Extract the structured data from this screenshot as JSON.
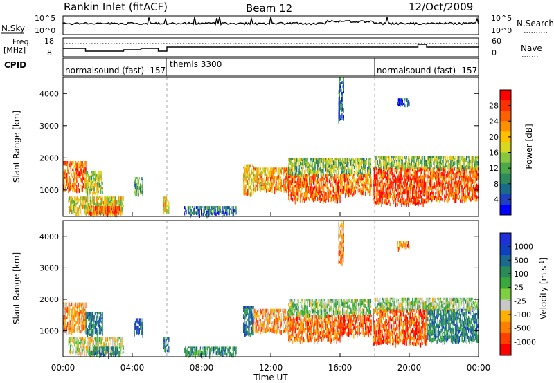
{
  "header": {
    "station": "Rankin Inlet (fitACF)",
    "beam": "Beam 12",
    "date": "12/Oct/2009"
  },
  "summary_panels": {
    "nsky": {
      "label": "N.Sky",
      "ticks": [
        "10^5",
        "10^0"
      ]
    },
    "nsearch": {
      "label": "N.Search",
      "ticks": [
        "10^5",
        "10^0"
      ]
    },
    "freq": {
      "label_line1": "Freq.",
      "label_line2": "[MHz]",
      "ticks": [
        "18",
        "8"
      ]
    },
    "nave": {
      "label": "Nave",
      "ticks": [
        "60",
        "0"
      ]
    },
    "cpid": {
      "label": "CPID",
      "segments": [
        {
          "text": "normalsound (fast) -157",
          "start_hour": 0
        },
        {
          "text": "themis 3300",
          "start_hour": 6
        },
        {
          "text": "normalsound (fast) -157",
          "start_hour": 18
        }
      ]
    }
  },
  "colors": {
    "power_scale": [
      "#0000ff",
      "#2040c0",
      "#1a6a8a",
      "#2c8a5c",
      "#4da84a",
      "#88c840",
      "#d8d820",
      "#ffc000",
      "#ff9000",
      "#ff6000",
      "#ff3000",
      "#ff0000"
    ],
    "velocity_scale": [
      "#ff0000",
      "#ff4000",
      "#ff8000",
      "#ffb000",
      "#c8c8c8",
      "#7ed040",
      "#3aa83a",
      "#2a8a5a",
      "#1a6a90",
      "#1040c0",
      "#2030d8"
    ],
    "grid": "#aaaaaa"
  },
  "chart_data": [
    {
      "type": "heatmap",
      "name": "power",
      "ylabel": "Slant Range [km]",
      "xlim_hours": [
        0,
        24
      ],
      "ylim_km": [
        180,
        4500
      ],
      "yticks": [
        "1000",
        "2000",
        "3000",
        "4000"
      ],
      "colorbar": {
        "label": "Power [dB]",
        "range": [
          0,
          32
        ],
        "tick_values": [
          4,
          8,
          12,
          16,
          20,
          24,
          28
        ],
        "tick_labels": [
          "4",
          "8",
          "12",
          "16",
          "20",
          "24",
          "28"
        ]
      },
      "echo_regions": [
        {
          "t0": 0.0,
          "t1": 1.3,
          "r0": 1000,
          "r1": 1900,
          "value": 25
        },
        {
          "t0": 1.3,
          "t1": 2.3,
          "r0": 900,
          "r1": 1600,
          "value": 16
        },
        {
          "t0": 0.3,
          "t1": 3.5,
          "r0": 300,
          "r1": 800,
          "value": 18
        },
        {
          "t0": 1.5,
          "t1": 3.3,
          "r0": 250,
          "r1": 500,
          "value": 26
        },
        {
          "t0": 4.1,
          "t1": 4.6,
          "r0": 900,
          "r1": 1400,
          "value": 12
        },
        {
          "t0": 5.8,
          "t1": 6.1,
          "r0": 350,
          "r1": 800,
          "value": 20
        },
        {
          "t0": 7.0,
          "t1": 10.0,
          "r0": 250,
          "r1": 500,
          "value": 8
        },
        {
          "t0": 10.4,
          "t1": 11.0,
          "r0": 900,
          "r1": 1800,
          "value": 20
        },
        {
          "t0": 11.0,
          "t1": 13.2,
          "r0": 1000,
          "r1": 1700,
          "value": 22
        },
        {
          "t0": 13.0,
          "t1": 16.0,
          "r0": 700,
          "r1": 1500,
          "value": 26
        },
        {
          "t0": 13.0,
          "t1": 17.8,
          "r0": 1500,
          "r1": 2000,
          "value": 14
        },
        {
          "t0": 16.0,
          "t1": 17.8,
          "r0": 900,
          "r1": 1500,
          "value": 24
        },
        {
          "t0": 17.9,
          "t1": 21.0,
          "r0": 600,
          "r1": 1700,
          "value": 28
        },
        {
          "t0": 21.0,
          "t1": 24.0,
          "r0": 700,
          "r1": 1700,
          "value": 26
        },
        {
          "t0": 18.0,
          "t1": 24.0,
          "r0": 1700,
          "r1": 2050,
          "value": 14
        },
        {
          "t0": 19.3,
          "t1": 20.0,
          "r0": 3650,
          "r1": 3850,
          "value": 6
        },
        {
          "t0": 15.9,
          "t1": 16.2,
          "r0": 3200,
          "r1": 4500,
          "value": 6
        }
      ]
    },
    {
      "type": "heatmap",
      "name": "velocity",
      "ylabel": "Slant Range [km]",
      "xlabel": "Time UT",
      "xlim_hours": [
        0,
        24
      ],
      "ylim_km": [
        180,
        4500
      ],
      "xticks": [
        "00:00",
        "04:00",
        "08:00",
        "12:00",
        "16:00",
        "20:00",
        "00:00"
      ],
      "yticks": [
        "1000",
        "2000",
        "3000",
        "4000"
      ],
      "colorbar": {
        "label": "Velocity [m s^-1]",
        "tick_labels": [
          "1000",
          "500",
          "100",
          "25",
          "-25",
          "-100",
          "-500",
          "-1000"
        ]
      },
      "echo_regions": [
        {
          "t0": 0.0,
          "t1": 1.3,
          "r0": 1000,
          "r1": 1900,
          "value": -100
        },
        {
          "t0": 1.3,
          "t1": 2.3,
          "r0": 900,
          "r1": 1600,
          "value": 100
        },
        {
          "t0": 0.3,
          "t1": 3.5,
          "r0": 300,
          "r1": 800,
          "value": -25
        },
        {
          "t0": 1.5,
          "t1": 3.3,
          "r0": 250,
          "r1": 500,
          "value": 100
        },
        {
          "t0": 4.1,
          "t1": 4.6,
          "r0": 900,
          "r1": 1400,
          "value": 300
        },
        {
          "t0": 5.8,
          "t1": 6.1,
          "r0": 350,
          "r1": 800,
          "value": 200
        },
        {
          "t0": 7.0,
          "t1": 10.0,
          "r0": 250,
          "r1": 500,
          "value": 60
        },
        {
          "t0": 10.4,
          "t1": 11.0,
          "r0": 900,
          "r1": 1800,
          "value": 150
        },
        {
          "t0": 11.0,
          "t1": 13.2,
          "r0": 1000,
          "r1": 1700,
          "value": -100
        },
        {
          "t0": 13.0,
          "t1": 16.0,
          "r0": 700,
          "r1": 1500,
          "value": -200
        },
        {
          "t0": 13.0,
          "t1": 17.8,
          "r0": 1500,
          "r1": 2000,
          "value": 0
        },
        {
          "t0": 16.0,
          "t1": 17.8,
          "r0": 900,
          "r1": 1500,
          "value": -300
        },
        {
          "t0": 17.9,
          "t1": 21.0,
          "r0": 600,
          "r1": 1700,
          "value": -300
        },
        {
          "t0": 21.0,
          "t1": 24.0,
          "r0": 700,
          "r1": 1700,
          "value": 100
        },
        {
          "t0": 18.0,
          "t1": 24.0,
          "r0": 1700,
          "r1": 2050,
          "value": 0
        },
        {
          "t0": 19.3,
          "t1": 20.0,
          "r0": 3650,
          "r1": 3850,
          "value": -150
        },
        {
          "t0": 15.9,
          "t1": 16.2,
          "r0": 3200,
          "r1": 4500,
          "value": -100
        }
      ]
    }
  ]
}
